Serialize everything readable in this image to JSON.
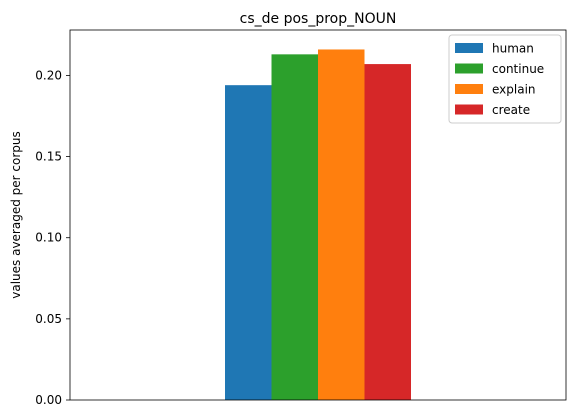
{
  "chart_data": {
    "type": "bar",
    "title": "cs_de pos_prop_NOUN",
    "xlabel": "",
    "ylabel": "values averaged per corpus",
    "ylim": [
      0,
      0.228
    ],
    "yticks": [
      0.0,
      0.05,
      0.1,
      0.15,
      0.2
    ],
    "ytick_labels": [
      "0.00",
      "0.05",
      "0.10",
      "0.15",
      "0.20"
    ],
    "grid": false,
    "legend_position": "top-right",
    "series": [
      {
        "name": "human",
        "value": 0.194,
        "color": "#1f77b4"
      },
      {
        "name": "continue",
        "value": 0.213,
        "color": "#2ca02c"
      },
      {
        "name": "explain",
        "value": 0.216,
        "color": "#ff7f0e"
      },
      {
        "name": "create",
        "value": 0.207,
        "color": "#d62728"
      }
    ]
  }
}
